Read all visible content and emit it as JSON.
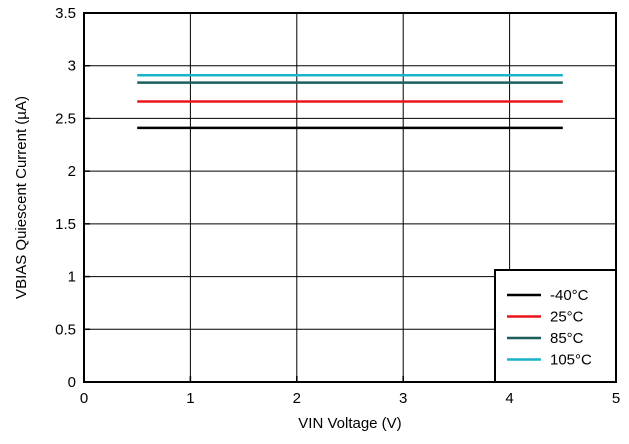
{
  "chart_data": {
    "type": "line",
    "xlabel": "VIN Voltage (V)",
    "ylabel": "VBIAS Quiescent Current (µA)",
    "xlim": [
      0,
      5
    ],
    "ylim": [
      0,
      3.5
    ],
    "xticks": [
      0,
      1,
      2,
      3,
      4,
      5
    ],
    "xtick_labels": [
      "0",
      "1",
      "2",
      "3",
      "4",
      "5"
    ],
    "yticks": [
      0,
      0.5,
      1,
      1.5,
      2,
      2.5,
      3,
      3.5
    ],
    "ytick_labels": [
      "0",
      "0.5",
      "1",
      "1.5",
      "2",
      "2.5",
      "3",
      "3.5"
    ],
    "grid": true,
    "legend_position": "bottom-right",
    "series": [
      {
        "name": "-40°C",
        "color": "#000000",
        "x": [
          0.5,
          4.5
        ],
        "y": [
          2.41,
          2.41
        ]
      },
      {
        "name": "25°C",
        "color": "#e8161b",
        "x": [
          0.5,
          4.5
        ],
        "y": [
          2.66,
          2.66
        ]
      },
      {
        "name": "85°C",
        "color": "#1b5e5b",
        "x": [
          0.5,
          4.5
        ],
        "y": [
          2.84,
          2.84
        ]
      },
      {
        "name": "105°C",
        "color": "#19b4cb",
        "x": [
          0.5,
          4.5
        ],
        "y": [
          2.91,
          2.91
        ]
      }
    ]
  }
}
